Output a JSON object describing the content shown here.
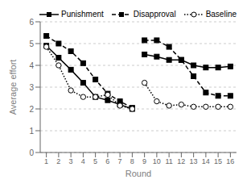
{
  "chart_data": {
    "type": "line",
    "xlabel": "Round",
    "ylabel": "Average effort",
    "xlim": [
      0.5,
      16.5
    ],
    "xticks": [
      1,
      2,
      3,
      4,
      5,
      6,
      7,
      8,
      9,
      10,
      11,
      12,
      13,
      14,
      15,
      16
    ],
    "ylim": [
      0,
      6
    ],
    "yticks": [
      0,
      1,
      2,
      3,
      4,
      5,
      6
    ],
    "grid": true,
    "legend": "top",
    "series": [
      {
        "name": "Punishment",
        "color": "black",
        "line_style": "solid",
        "marker": "square",
        "x": [
          1,
          2,
          3,
          4,
          5,
          6,
          7,
          8
        ],
        "values": [
          4.9,
          4.35,
          3.8,
          3.2,
          2.55,
          2.4,
          2.2,
          2.0
        ]
      },
      {
        "color": "black",
        "line_style": "solid",
        "marker": "square",
        "x": [
          9,
          10,
          11,
          12,
          13,
          14,
          15,
          16
        ],
        "values": [
          4.5,
          4.4,
          4.25,
          4.25,
          4.0,
          3.9,
          3.9,
          3.95
        ]
      },
      {
        "name": "Disapproval",
        "color": "black",
        "line_style": "dashed",
        "marker": "square",
        "x": [
          1,
          2,
          3,
          4,
          5,
          6,
          7,
          8
        ],
        "values": [
          5.35,
          5.0,
          4.65,
          4.1,
          3.35,
          2.7,
          2.35,
          2.05
        ]
      },
      {
        "color": "black",
        "line_style": "dashed",
        "marker": "square",
        "x": [
          9,
          10,
          11,
          12,
          13,
          14,
          15,
          16
        ],
        "values": [
          5.15,
          5.15,
          4.85,
          4.25,
          3.5,
          2.75,
          2.6,
          2.6
        ]
      },
      {
        "name": "Baseline",
        "color": "black",
        "line_style": "dotted",
        "marker": "circle",
        "x": [
          1,
          2,
          3,
          4,
          5,
          6,
          7,
          8
        ],
        "values": [
          4.85,
          4.0,
          2.85,
          2.55,
          2.55,
          2.65,
          2.15,
          2.0
        ]
      },
      {
        "color": "black",
        "line_style": "dotted",
        "marker": "circle",
        "x": [
          9,
          10,
          11,
          12,
          13,
          14,
          15,
          16
        ],
        "values": [
          3.2,
          2.35,
          2.15,
          2.2,
          2.1,
          2.1,
          2.1,
          2.1
        ]
      }
    ]
  }
}
